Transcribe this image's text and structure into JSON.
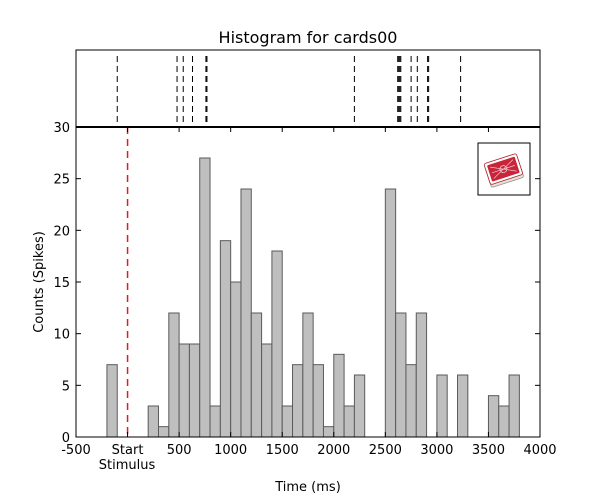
{
  "chart_data": {
    "type": "bar",
    "title": "Histogram for cards00",
    "xlabel": "Time (ms)",
    "ylabel": "Counts (Spikes)",
    "xlim": [
      -500,
      4000
    ],
    "ylim": [
      0,
      30
    ],
    "x_ticks": [
      {
        "value": -500,
        "label": "-500"
      },
      {
        "value": 0,
        "label": "Start"
      },
      {
        "value": 500,
        "label": "500"
      },
      {
        "value": 1000,
        "label": "1000"
      },
      {
        "value": 1500,
        "label": "1500"
      },
      {
        "value": 2000,
        "label": "2000"
      },
      {
        "value": 2500,
        "label": "2500"
      },
      {
        "value": 3000,
        "label": "3000"
      },
      {
        "value": 3500,
        "label": "3500"
      },
      {
        "value": 4000,
        "label": "4000"
      }
    ],
    "x_tick_sublabel": {
      "value": 0,
      "label": "Stimulus"
    },
    "y_ticks": [
      0,
      5,
      10,
      15,
      20,
      25,
      30
    ],
    "stimulus_line_x": 0,
    "bin_width": 100,
    "bins": [
      {
        "start": -200,
        "value": 7
      },
      {
        "start": -100,
        "value": 0
      },
      {
        "start": 0,
        "value": 0
      },
      {
        "start": 100,
        "value": 0
      },
      {
        "start": 200,
        "value": 3
      },
      {
        "start": 300,
        "value": 1
      },
      {
        "start": 400,
        "value": 12
      },
      {
        "start": 500,
        "value": 9
      },
      {
        "start": 600,
        "value": 9
      },
      {
        "start": 700,
        "value": 27
      },
      {
        "start": 800,
        "value": 3
      },
      {
        "start": 900,
        "value": 19
      },
      {
        "start": 1000,
        "value": 15
      },
      {
        "start": 1100,
        "value": 24
      },
      {
        "start": 1200,
        "value": 12
      },
      {
        "start": 1300,
        "value": 9
      },
      {
        "start": 1400,
        "value": 18
      },
      {
        "start": 1500,
        "value": 3
      },
      {
        "start": 1600,
        "value": 7
      },
      {
        "start": 1700,
        "value": 12
      },
      {
        "start": 1800,
        "value": 7
      },
      {
        "start": 1900,
        "value": 1
      },
      {
        "start": 2000,
        "value": 8
      },
      {
        "start": 2100,
        "value": 3
      },
      {
        "start": 2200,
        "value": 6
      },
      {
        "start": 2300,
        "value": 0
      },
      {
        "start": 2400,
        "value": 0
      },
      {
        "start": 2500,
        "value": 24
      },
      {
        "start": 2600,
        "value": 12
      },
      {
        "start": 2700,
        "value": 7
      },
      {
        "start": 2800,
        "value": 12
      },
      {
        "start": 2900,
        "value": 0
      },
      {
        "start": 3000,
        "value": 6
      },
      {
        "start": 3100,
        "value": 0
      },
      {
        "start": 3200,
        "value": 6
      },
      {
        "start": 3300,
        "value": 0
      },
      {
        "start": 3400,
        "value": 0
      },
      {
        "start": 3500,
        "value": 4
      },
      {
        "start": 3600,
        "value": 3
      },
      {
        "start": 3700,
        "value": 6
      }
    ],
    "raster_events_ms": [
      -100,
      480,
      540,
      630,
      760,
      770,
      2200,
      2620,
      2630,
      2640,
      2650,
      2750,
      2810,
      2910,
      2920,
      3230
    ],
    "colors": {
      "bar_fill": "#bfbfbf",
      "bar_edge": "#5a5a5a",
      "stimulus_line": "#e41a1c",
      "raster_tick": "#000000"
    },
    "grid": false,
    "inset_icon": "playing-cards-deck-icon"
  }
}
